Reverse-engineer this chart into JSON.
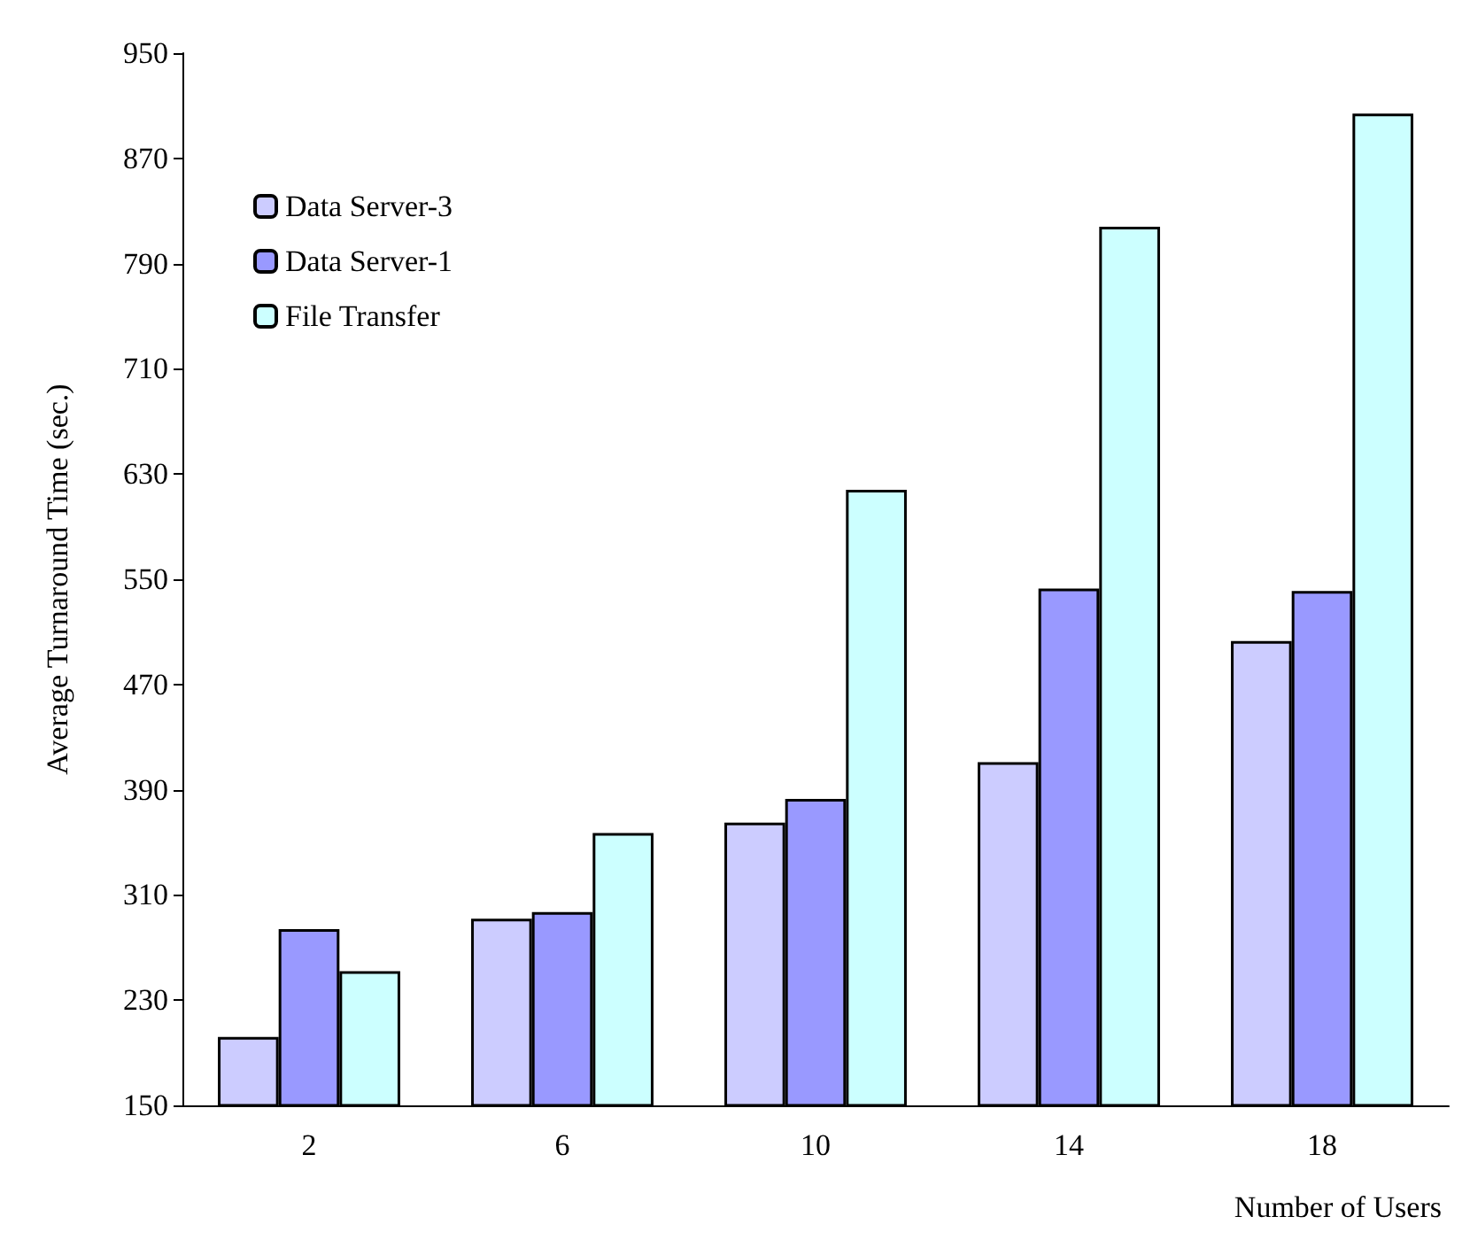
{
  "chart_data": {
    "type": "bar",
    "xlabel": "Number of Users",
    "ylabel": "Average Turnaround Time (sec.)",
    "categories": [
      "2",
      "6",
      "10",
      "14",
      "18"
    ],
    "series": [
      {
        "name": "Data Server-3",
        "color": "#ccccff",
        "values": [
          202,
          292,
          365,
          411,
          503
        ]
      },
      {
        "name": "Data Server-1",
        "color": "#9999ff",
        "values": [
          284,
          297,
          383,
          543,
          541
        ]
      },
      {
        "name": "File Transfer",
        "color": "#ccffff",
        "values": [
          252,
          357,
          618,
          818,
          904
        ]
      }
    ],
    "ylim": [
      150,
      950
    ],
    "yticks": [
      150,
      230,
      310,
      390,
      470,
      550,
      630,
      710,
      790,
      870,
      950
    ],
    "grid": false,
    "legend": "top left"
  }
}
